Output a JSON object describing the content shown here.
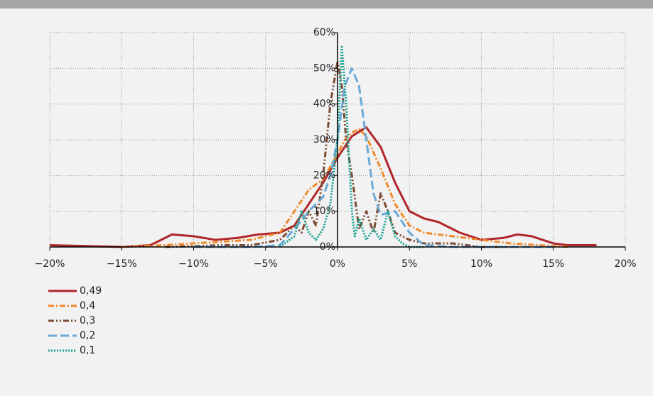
{
  "chart_data": {
    "type": "line",
    "xlim": [
      -20,
      20
    ],
    "xticks": [
      {
        "value": -20,
        "label": "−20%"
      },
      {
        "value": -15,
        "label": "−15%"
      },
      {
        "value": -10,
        "label": "−10%"
      },
      {
        "value": -5,
        "label": "−5%"
      },
      {
        "value": 0,
        "label": "0%"
      },
      {
        "value": 5,
        "label": "5%"
      },
      {
        "value": 10,
        "label": "10%"
      },
      {
        "value": 15,
        "label": "15%"
      },
      {
        "value": 20,
        "label": "20%"
      }
    ],
    "ylim": [
      0,
      60
    ],
    "yticks": [
      {
        "value": 0,
        "label": "0%"
      },
      {
        "value": 10,
        "label": "10%"
      },
      {
        "value": 20,
        "label": "20%"
      },
      {
        "value": 30,
        "label": "30%"
      },
      {
        "value": 40,
        "label": "40%"
      },
      {
        "value": 50,
        "label": "50%"
      },
      {
        "value": 60,
        "label": "60%"
      }
    ],
    "grid": true,
    "legend": "bottom-left",
    "series": [
      {
        "name": "0,49",
        "color": "#b0262a",
        "dash": "solid",
        "x": [
          -20,
          -15,
          -13,
          -11.5,
          -10,
          -8.5,
          -7,
          -5.5,
          -4,
          -3,
          -2,
          -1,
          0,
          1,
          2,
          3,
          4,
          5,
          6,
          7,
          8.5,
          10,
          11.5,
          12.5,
          13.5,
          15,
          16,
          18
        ],
        "values": [
          0.5,
          0,
          0.5,
          3.5,
          3,
          2,
          2.5,
          3.5,
          4,
          6,
          12,
          18,
          25,
          31,
          33.5,
          28,
          18,
          10,
          8,
          7,
          4,
          2,
          2.5,
          3.5,
          3,
          1,
          0.5,
          0.5
        ]
      },
      {
        "name": "0,4",
        "color": "#f0892a",
        "dash": "dashdot",
        "x": [
          -15,
          -12,
          -10,
          -8,
          -6,
          -4,
          -3,
          -2,
          -1,
          0,
          0.5,
          1,
          1.5,
          2,
          3,
          4,
          5,
          6,
          8,
          10,
          12,
          14,
          16
        ],
        "values": [
          0,
          0.5,
          1,
          1.5,
          2,
          4,
          10,
          16,
          19,
          26,
          30,
          32,
          33,
          31,
          22,
          12,
          6,
          4,
          3,
          2,
          1,
          0.5,
          0
        ]
      },
      {
        "name": "0,3",
        "color": "#7a4a32",
        "dash": "dashdotdot",
        "x": [
          -12,
          -8,
          -6,
          -4,
          -3,
          -2.5,
          -2,
          -1.5,
          -1,
          -0.5,
          0,
          0.3,
          0.6,
          1,
          1.5,
          2,
          2.5,
          3,
          3.5,
          4,
          5,
          6,
          8,
          10,
          12
        ],
        "values": [
          0,
          0.5,
          0.5,
          2,
          6,
          4,
          10,
          6,
          20,
          40,
          52,
          45,
          30,
          20,
          5,
          10,
          4,
          15,
          10,
          4,
          2,
          1,
          1,
          0,
          0
        ]
      },
      {
        "name": "0,2",
        "color": "#6aaad8",
        "dash": "longdash",
        "x": [
          -10,
          -6,
          -4,
          -3,
          -2,
          -1,
          -0.5,
          0,
          0.5,
          1,
          1.5,
          2,
          2.5,
          3,
          4,
          5,
          6,
          8,
          12,
          15
        ],
        "values": [
          0,
          0,
          0.5,
          5,
          10,
          14,
          20,
          30,
          45,
          50,
          45,
          30,
          15,
          9,
          10,
          4,
          0.5,
          0,
          0,
          0
        ]
      },
      {
        "name": "0,1",
        "color": "#1aa292",
        "dash": "dot",
        "x": [
          -4,
          -3,
          -2.5,
          -2,
          -1.5,
          -1,
          -0.5,
          0,
          0.3,
          0.6,
          1,
          1.2,
          1.5,
          2,
          2.5,
          3,
          3.5,
          4,
          4.5,
          5,
          6
        ],
        "values": [
          0,
          3,
          10,
          4,
          2,
          5,
          12,
          30,
          56,
          40,
          10,
          3,
          8,
          2,
          5,
          2,
          10,
          3,
          1,
          0,
          0
        ]
      }
    ]
  }
}
